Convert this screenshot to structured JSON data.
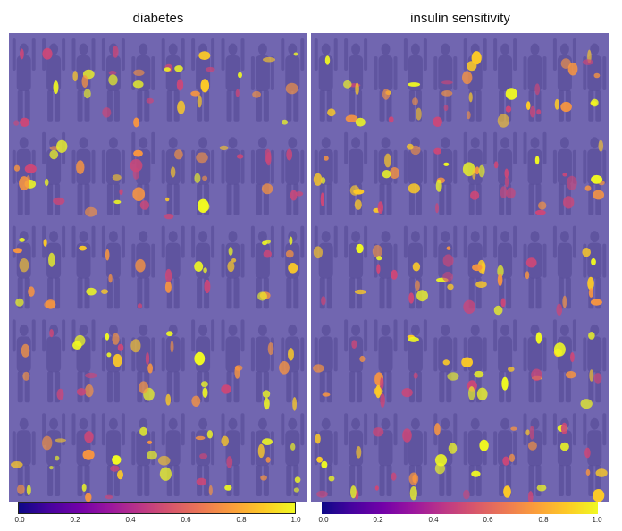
{
  "panels": [
    {
      "id": "left",
      "title": "diabetes",
      "rows": 5,
      "cols": 10
    },
    {
      "id": "right",
      "title": "insulin sensitivity",
      "rows": 5,
      "cols": 10
    }
  ],
  "colorbars": [
    {
      "ticks": [
        "0.0",
        "0.2",
        "0.4",
        "0.6",
        "0.8",
        "1.0"
      ]
    },
    {
      "ticks": [
        "0.0",
        "0.2",
        "0.4",
        "0.6",
        "0.8",
        "1.0"
      ]
    }
  ],
  "colors": {
    "background": "#7166b0",
    "silhouette": "#5a4f9a",
    "colormap": [
      "#0d0887",
      "#7301a8",
      "#bd3786",
      "#ed7953",
      "#fdca26",
      "#f0f921"
    ]
  }
}
